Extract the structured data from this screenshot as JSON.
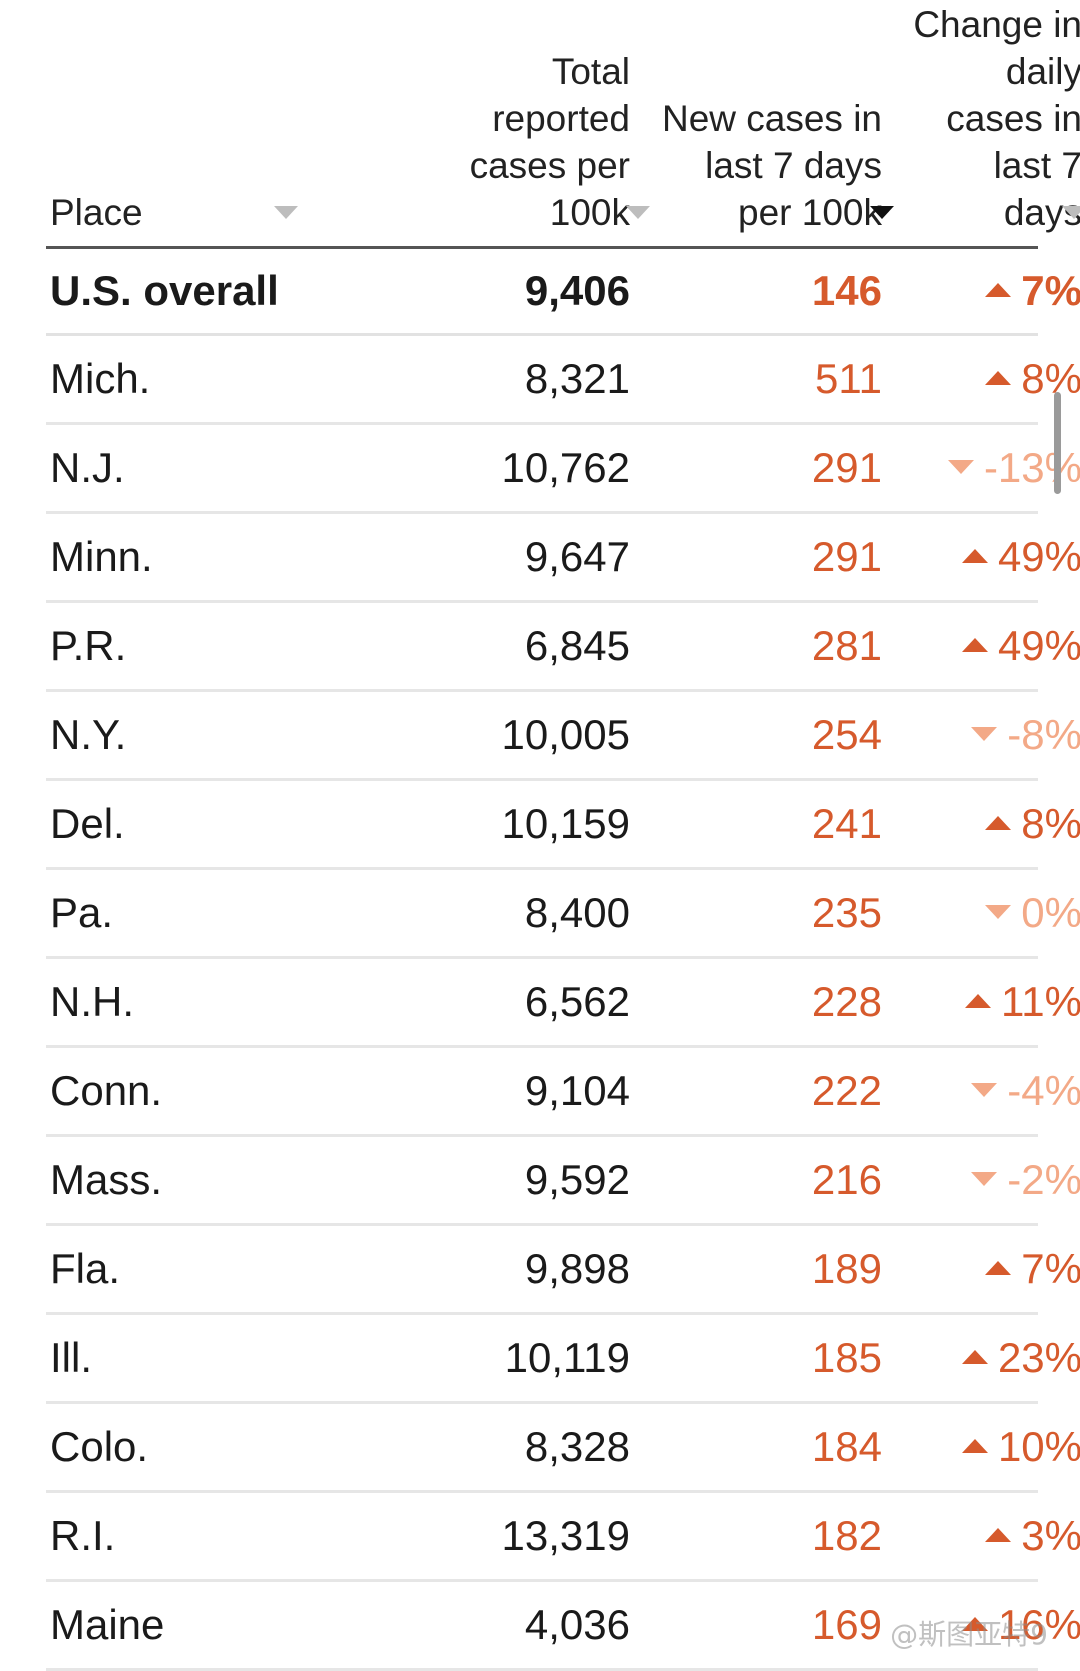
{
  "header": {
    "place": "Place",
    "total": "Total\nreported\ncases per",
    "total_last": "100k",
    "new_cases": "New cases in\nlast 7 days",
    "new_cases_last": "per 100k",
    "change": "Change in\ndaily\ncases in\nlast 7",
    "change_last": "days",
    "active_sort": "new_cases"
  },
  "colors": {
    "up": "#d65a2c",
    "down": "#f3a987",
    "new_cases": "#d65a2c"
  },
  "overall": {
    "place": "U.S. overall",
    "total": "9,406",
    "new": "146",
    "dir": "up",
    "change": "7%"
  },
  "rows": [
    {
      "place": "Mich.",
      "total": "8,321",
      "new": "511",
      "dir": "up",
      "change": "8%"
    },
    {
      "place": "N.J.",
      "total": "10,762",
      "new": "291",
      "dir": "down",
      "change": "-13%"
    },
    {
      "place": "Minn.",
      "total": "9,647",
      "new": "291",
      "dir": "up",
      "change": "49%"
    },
    {
      "place": "P.R.",
      "total": "6,845",
      "new": "281",
      "dir": "up",
      "change": "49%"
    },
    {
      "place": "N.Y.",
      "total": "10,005",
      "new": "254",
      "dir": "down",
      "change": "-8%"
    },
    {
      "place": "Del.",
      "total": "10,159",
      "new": "241",
      "dir": "up",
      "change": "8%"
    },
    {
      "place": "Pa.",
      "total": "8,400",
      "new": "235",
      "dir": "down",
      "change": "0%"
    },
    {
      "place": "N.H.",
      "total": "6,562",
      "new": "228",
      "dir": "up",
      "change": "11%"
    },
    {
      "place": "Conn.",
      "total": "9,104",
      "new": "222",
      "dir": "down",
      "change": "-4%"
    },
    {
      "place": "Mass.",
      "total": "9,592",
      "new": "216",
      "dir": "down",
      "change": "-2%"
    },
    {
      "place": "Fla.",
      "total": "9,898",
      "new": "189",
      "dir": "up",
      "change": "7%"
    },
    {
      "place": "Ill.",
      "total": "10,119",
      "new": "185",
      "dir": "up",
      "change": "23%"
    },
    {
      "place": "Colo.",
      "total": "8,328",
      "new": "184",
      "dir": "up",
      "change": "10%"
    },
    {
      "place": "R.I.",
      "total": "13,319",
      "new": "182",
      "dir": "up",
      "change": "3%"
    },
    {
      "place": "Maine",
      "total": "4,036",
      "new": "169",
      "dir": "up",
      "change": "16%"
    }
  ],
  "watermark": "@斯图亚特9"
}
